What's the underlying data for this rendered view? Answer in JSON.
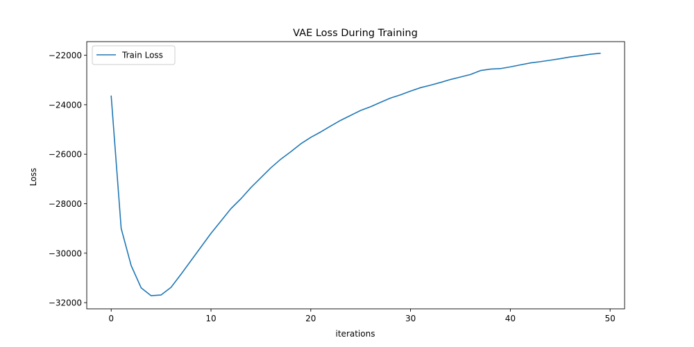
{
  "chart_data": {
    "type": "line",
    "title": "VAE Loss During Training",
    "xlabel": "iterations",
    "ylabel": "Loss",
    "xlim": [
      -2.45,
      51.45
    ],
    "ylim": [
      -32250,
      -21450
    ],
    "xticks": [
      0,
      10,
      20,
      30,
      40,
      50
    ],
    "xtick_labels": [
      "0",
      "10",
      "20",
      "30",
      "40",
      "50"
    ],
    "yticks": [
      -32000,
      -30000,
      -28000,
      -26000,
      -24000,
      -22000
    ],
    "ytick_labels": [
      "−32000",
      "−30000",
      "−28000",
      "−26000",
      "−24000",
      "−22000"
    ],
    "grid": false,
    "legend": {
      "position": "upper-left"
    },
    "series": [
      {
        "name": "Train Loss",
        "color": "#1f77b4",
        "x": [
          0,
          1,
          2,
          3,
          4,
          5,
          6,
          7,
          8,
          9,
          10,
          11,
          12,
          13,
          14,
          15,
          16,
          17,
          18,
          19,
          20,
          21,
          22,
          23,
          24,
          25,
          26,
          27,
          28,
          29,
          30,
          31,
          32,
          33,
          34,
          35,
          36,
          37,
          38,
          39,
          40,
          41,
          42,
          43,
          44,
          45,
          46,
          47,
          48,
          49
        ],
        "y": [
          -23650,
          -29000,
          -30500,
          -31400,
          -31720,
          -31690,
          -31380,
          -30850,
          -30300,
          -29750,
          -29200,
          -28700,
          -28200,
          -27800,
          -27350,
          -26950,
          -26550,
          -26200,
          -25900,
          -25580,
          -25320,
          -25100,
          -24860,
          -24630,
          -24430,
          -24230,
          -24080,
          -23900,
          -23730,
          -23600,
          -23450,
          -23310,
          -23210,
          -23100,
          -22980,
          -22880,
          -22780,
          -22620,
          -22560,
          -22540,
          -22470,
          -22390,
          -22310,
          -22260,
          -22200,
          -22140,
          -22070,
          -22020,
          -21960,
          -21920
        ]
      }
    ]
  }
}
